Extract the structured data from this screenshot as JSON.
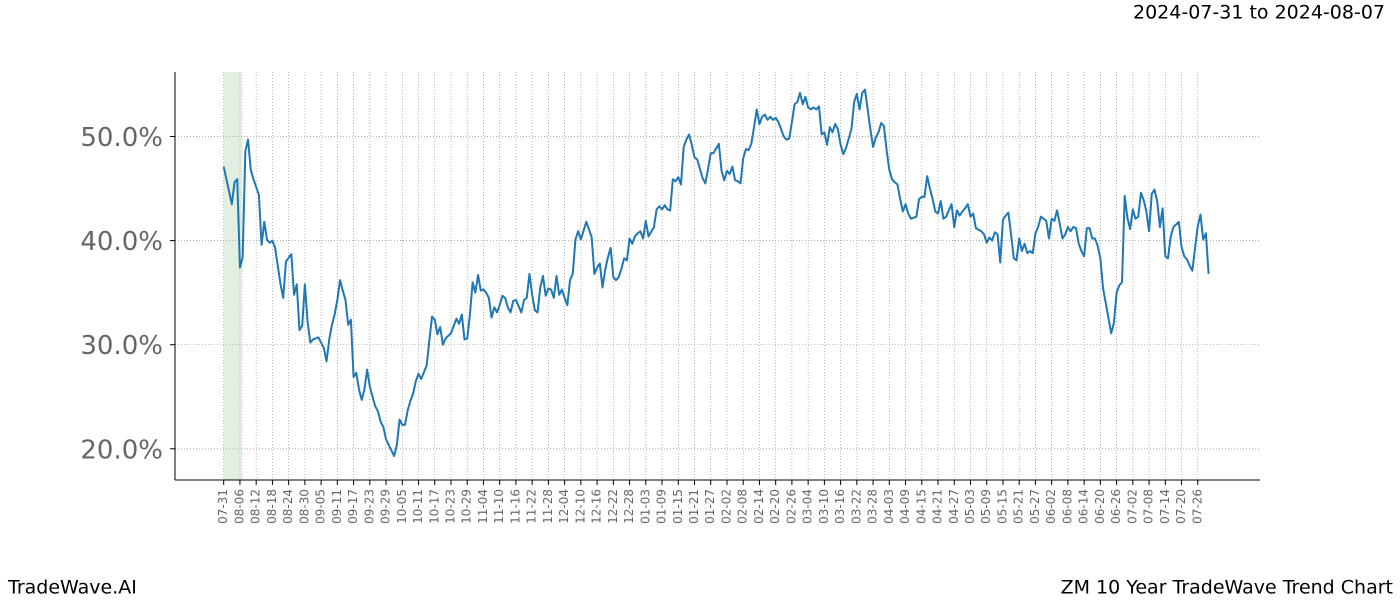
{
  "chart_data": {
    "type": "line",
    "title": "ZM 10 Year TradeWave Trend Chart",
    "subtitle": "2024-07-31 to 2024-08-07",
    "source": "TradeWave.AI",
    "color": "#1f77b4",
    "highlight": {
      "x": [
        0,
        7
      ],
      "color": "#d5e8d4"
    },
    "grid": true,
    "xlim": [
      -18,
      383
    ],
    "ylim": [
      17,
      56.2
    ],
    "yticks": [
      {
        "value": 20,
        "label": "20.0%"
      },
      {
        "value": 30,
        "label": "30.0%"
      },
      {
        "value": 40,
        "label": "40.0%"
      },
      {
        "value": 50,
        "label": "50.0%"
      }
    ],
    "xticks": [
      {
        "value": 0,
        "label": "07-31"
      },
      {
        "value": 6,
        "label": "08-06"
      },
      {
        "value": 12,
        "label": "08-12"
      },
      {
        "value": 18,
        "label": "08-18"
      },
      {
        "value": 24,
        "label": "08-24"
      },
      {
        "value": 30,
        "label": "08-30"
      },
      {
        "value": 36,
        "label": "09-05"
      },
      {
        "value": 42,
        "label": "09-11"
      },
      {
        "value": 48,
        "label": "09-17"
      },
      {
        "value": 54,
        "label": "09-23"
      },
      {
        "value": 60,
        "label": "09-29"
      },
      {
        "value": 66,
        "label": "10-05"
      },
      {
        "value": 72,
        "label": "10-11"
      },
      {
        "value": 78,
        "label": "10-17"
      },
      {
        "value": 84,
        "label": "10-23"
      },
      {
        "value": 90,
        "label": "10-29"
      },
      {
        "value": 96,
        "label": "11-04"
      },
      {
        "value": 102,
        "label": "11-10"
      },
      {
        "value": 108,
        "label": "11-16"
      },
      {
        "value": 114,
        "label": "11-22"
      },
      {
        "value": 120,
        "label": "11-28"
      },
      {
        "value": 126,
        "label": "12-04"
      },
      {
        "value": 132,
        "label": "12-10"
      },
      {
        "value": 138,
        "label": "12-16"
      },
      {
        "value": 144,
        "label": "12-22"
      },
      {
        "value": 150,
        "label": "12-28"
      },
      {
        "value": 156,
        "label": "01-03"
      },
      {
        "value": 162,
        "label": "01-09"
      },
      {
        "value": 168,
        "label": "01-15"
      },
      {
        "value": 174,
        "label": "01-21"
      },
      {
        "value": 180,
        "label": "01-27"
      },
      {
        "value": 186,
        "label": "02-02"
      },
      {
        "value": 192,
        "label": "02-08"
      },
      {
        "value": 198,
        "label": "02-14"
      },
      {
        "value": 204,
        "label": "02-20"
      },
      {
        "value": 210,
        "label": "02-26"
      },
      {
        "value": 216,
        "label": "03-04"
      },
      {
        "value": 222,
        "label": "03-10"
      },
      {
        "value": 228,
        "label": "03-16"
      },
      {
        "value": 234,
        "label": "03-22"
      },
      {
        "value": 240,
        "label": "03-28"
      },
      {
        "value": 246,
        "label": "04-03"
      },
      {
        "value": 252,
        "label": "04-09"
      },
      {
        "value": 258,
        "label": "04-15"
      },
      {
        "value": 264,
        "label": "04-21"
      },
      {
        "value": 270,
        "label": "04-27"
      },
      {
        "value": 276,
        "label": "05-03"
      },
      {
        "value": 282,
        "label": "05-09"
      },
      {
        "value": 288,
        "label": "05-15"
      },
      {
        "value": 294,
        "label": "05-21"
      },
      {
        "value": 300,
        "label": "05-27"
      },
      {
        "value": 306,
        "label": "06-02"
      },
      {
        "value": 312,
        "label": "06-08"
      },
      {
        "value": 318,
        "label": "06-14"
      },
      {
        "value": 324,
        "label": "06-20"
      },
      {
        "value": 330,
        "label": "06-26"
      },
      {
        "value": 336,
        "label": "07-02"
      },
      {
        "value": 342,
        "label": "07-08"
      },
      {
        "value": 348,
        "label": "07-14"
      },
      {
        "value": 354,
        "label": "07-20"
      },
      {
        "value": 360,
        "label": "07-26"
      }
    ],
    "x": [
      0,
      1,
      3,
      4,
      5,
      6,
      7,
      8,
      9,
      10,
      11,
      13,
      14,
      15,
      16,
      17,
      18,
      19,
      21,
      22,
      23,
      25,
      26,
      27,
      28,
      29,
      30,
      31,
      32,
      33,
      35,
      37,
      38,
      39,
      40,
      41,
      42,
      43,
      44,
      45,
      46,
      47,
      48,
      49,
      50,
      51,
      52,
      53,
      54,
      55,
      56,
      57,
      58,
      59,
      60,
      63,
      64,
      65,
      66,
      67,
      68,
      69,
      70,
      71,
      72,
      73,
      75,
      76,
      77,
      78,
      79,
      80,
      81,
      82,
      84,
      86,
      87,
      88,
      89,
      90,
      91,
      92,
      93,
      94,
      95,
      96,
      97,
      98,
      99,
      100,
      101,
      102,
      103,
      104,
      105,
      106,
      107,
      108,
      110,
      111,
      112,
      113,
      114,
      115,
      116,
      117,
      118,
      119,
      120,
      121,
      122,
      123,
      124,
      125,
      126,
      127,
      128,
      129,
      130,
      131,
      132,
      134,
      135,
      136,
      137,
      138,
      139,
      140,
      141,
      142,
      143,
      144,
      145,
      146,
      147,
      148,
      149,
      150,
      151,
      152,
      153,
      154,
      155,
      156,
      157,
      159,
      160,
      161,
      162,
      163,
      164,
      165,
      166,
      167,
      168,
      169,
      170,
      171,
      172,
      173,
      174,
      175,
      176,
      177,
      178,
      179,
      180,
      181,
      183,
      184,
      185,
      186,
      187,
      188,
      189,
      190,
      191,
      192,
      193,
      194,
      195,
      196,
      197,
      198,
      199,
      200,
      201,
      202,
      203,
      204,
      205,
      207,
      208,
      209,
      210,
      211,
      212,
      213,
      214,
      215,
      216,
      217,
      218,
      219,
      220,
      221,
      222,
      223,
      224,
      225,
      226,
      227,
      228,
      229,
      230,
      232,
      233,
      234,
      235,
      236,
      237,
      238,
      239,
      240,
      241,
      242,
      243,
      244,
      245,
      246,
      247,
      248,
      249,
      250,
      251,
      252,
      253,
      254,
      256,
      257,
      258,
      259,
      260,
      261,
      262,
      263,
      264,
      265,
      266,
      267,
      268,
      269,
      270,
      271,
      272,
      273,
      274,
      275,
      276,
      277,
      278,
      280,
      281,
      282,
      283,
      284,
      285,
      286,
      287,
      288,
      289,
      290,
      291,
      292,
      293,
      294,
      295,
      296,
      297,
      298,
      299,
      300,
      301,
      302,
      304,
      305,
      306,
      307,
      308,
      309,
      310,
      311,
      312,
      313,
      314,
      315,
      316,
      317,
      318,
      319,
      320,
      321,
      322,
      323,
      324,
      325,
      326,
      328,
      329,
      330,
      331,
      332,
      333,
      334,
      335,
      336,
      337,
      338,
      339,
      340,
      341,
      342,
      343,
      344,
      345,
      346,
      347,
      348,
      349,
      350,
      351,
      353,
      354,
      355,
      356,
      357,
      358,
      359,
      360,
      361,
      362,
      363,
      364
    ],
    "values": [
      47.1,
      45.9,
      43.5,
      45.6,
      45.9,
      37.4,
      38.4,
      48.6,
      49.7,
      46.8,
      45.9,
      44.4,
      39.6,
      41.8,
      40.1,
      39.8,
      40.0,
      39.3,
      35.8,
      34.5,
      38.0,
      38.7,
      34.8,
      35.8,
      31.4,
      31.8,
      35.8,
      32.2,
      30.2,
      30.5,
      30.7,
      29.7,
      28.4,
      30.5,
      31.9,
      32.9,
      34.3,
      36.2,
      35.2,
      34.3,
      31.9,
      32.4,
      26.9,
      27.3,
      25.7,
      24.7,
      25.7,
      27.6,
      26.0,
      25.0,
      24.1,
      23.6,
      22.6,
      22.1,
      20.9,
      19.3,
      20.4,
      22.8,
      22.3,
      22.3,
      23.7,
      24.6,
      25.3,
      26.5,
      27.2,
      26.7,
      28.0,
      30.4,
      32.7,
      32.4,
      31.0,
      31.7,
      30.0,
      30.6,
      31.1,
      32.5,
      32.0,
      32.9,
      30.5,
      30.6,
      32.9,
      36.0,
      35.0,
      36.7,
      35.2,
      35.3,
      35.0,
      34.5,
      32.6,
      33.6,
      33.1,
      33.8,
      34.7,
      34.5,
      33.6,
      33.1,
      34.2,
      34.3,
      33.1,
      34.3,
      34.5,
      36.8,
      34.8,
      33.3,
      33.1,
      35.5,
      36.6,
      34.7,
      35.4,
      35.3,
      34.5,
      36.6,
      34.8,
      35.3,
      34.5,
      33.8,
      36.2,
      36.8,
      40.1,
      40.9,
      40.1,
      41.8,
      41.1,
      40.3,
      36.8,
      37.4,
      37.8,
      35.5,
      37.2,
      38.4,
      39.3,
      36.5,
      36.2,
      36.5,
      37.3,
      38.3,
      38.1,
      40.2,
      39.7,
      40.4,
      40.7,
      40.9,
      40.2,
      41.9,
      40.4,
      41.3,
      43.0,
      43.3,
      43.0,
      43.4,
      43.0,
      42.9,
      45.9,
      45.7,
      46.1,
      45.4,
      49.0,
      49.7,
      50.2,
      49.2,
      48.0,
      47.8,
      46.9,
      46.0,
      45.5,
      46.9,
      48.4,
      48.4,
      49.3,
      46.7,
      45.8,
      46.7,
      46.4,
      47.1,
      45.8,
      45.7,
      45.5,
      47.9,
      48.8,
      48.7,
      49.3,
      50.9,
      52.6,
      51.2,
      51.9,
      52.1,
      51.6,
      51.9,
      51.6,
      51.8,
      51.4,
      50.0,
      49.7,
      49.8,
      51.4,
      53.1,
      53.3,
      54.2,
      53.1,
      53.8,
      52.8,
      52.6,
      52.8,
      52.6,
      52.9,
      50.2,
      50.4,
      49.2,
      50.9,
      50.4,
      51.2,
      50.7,
      49.2,
      48.3,
      48.9,
      50.7,
      53.3,
      54.1,
      52.6,
      54.2,
      54.5,
      52.6,
      50.7,
      49.0,
      49.9,
      50.4,
      51.3,
      51.0,
      48.7,
      46.8,
      45.9,
      45.6,
      45.4,
      44.0,
      42.8,
      43.5,
      42.6,
      42.1,
      42.3,
      44.0,
      44.2,
      44.2,
      46.2,
      45.0,
      44.0,
      42.8,
      42.6,
      43.8,
      42.1,
      42.3,
      42.9,
      43.5,
      41.3,
      42.9,
      42.4,
      42.8,
      43.1,
      43.5,
      42.3,
      42.6,
      41.2,
      40.9,
      40.6,
      39.8,
      40.3,
      40.0,
      40.8,
      40.6,
      37.9,
      42.0,
      42.4,
      42.7,
      40.6,
      38.3,
      38.1,
      40.2,
      39.0,
      39.7,
      38.8,
      39.0,
      38.8,
      40.7,
      41.3,
      42.3,
      41.9,
      40.2,
      42.1,
      41.9,
      42.9,
      41.6,
      40.2,
      40.6,
      41.3,
      40.9,
      41.3,
      41.2,
      39.7,
      39.0,
      38.5,
      41.2,
      41.2,
      40.2,
      40.2,
      39.5,
      38.3,
      35.4,
      34.0,
      31.1,
      32.1,
      35.0,
      35.7,
      36.0,
      44.3,
      42.2,
      41.1,
      43.0,
      42.1,
      42.3,
      44.6,
      43.9,
      42.8,
      40.9,
      44.5,
      44.9,
      43.8,
      41.3,
      43.1,
      38.5,
      38.3,
      40.4,
      41.3,
      41.8,
      39.4,
      38.5,
      38.2,
      37.6,
      37.1,
      39.3,
      41.4,
      42.5,
      40.1,
      40.7,
      36.8
    ]
  }
}
